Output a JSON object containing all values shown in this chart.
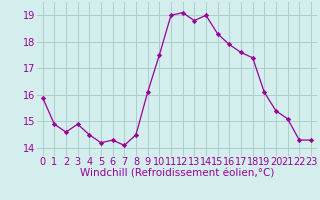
{
  "x": [
    0,
    1,
    2,
    3,
    4,
    5,
    6,
    7,
    8,
    9,
    10,
    11,
    12,
    13,
    14,
    15,
    16,
    17,
    18,
    19,
    20,
    21,
    22,
    23
  ],
  "y": [
    15.9,
    14.9,
    14.6,
    14.9,
    14.5,
    14.2,
    14.3,
    14.1,
    14.5,
    16.1,
    17.5,
    19.0,
    19.1,
    18.8,
    19.0,
    18.3,
    17.9,
    17.6,
    17.4,
    16.1,
    15.4,
    15.1,
    14.3,
    14.3
  ],
  "line_color": "#990099",
  "marker": "D",
  "marker_size": 2.2,
  "xlabel": "Windchill (Refroidissement éolien,°C)",
  "xlabel_fontsize": 7.5,
  "ylabel_ticks": [
    14,
    15,
    16,
    17,
    18,
    19
  ],
  "xlim": [
    -0.5,
    23.5
  ],
  "ylim": [
    13.7,
    19.5
  ],
  "grid_color": "#aacece",
  "bg_color": "#d4eeee",
  "tick_color": "#990099",
  "tick_fontsize": 7.0,
  "fig_bg": "#d4eeee"
}
